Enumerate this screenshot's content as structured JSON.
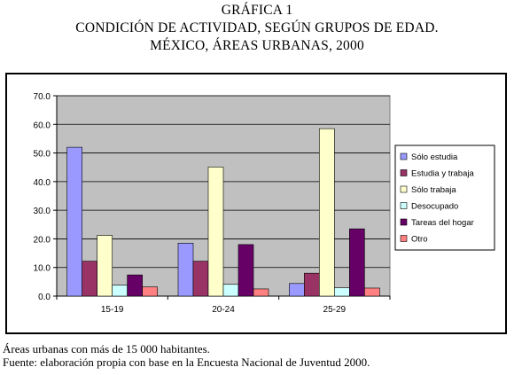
{
  "title": {
    "line1": "GRÁFICA 1",
    "line2": "CONDICIÓN DE ACTIVIDAD, SEGÚN GRUPOS DE EDAD.",
    "line3": "MÉXICO, ÁREAS URBANAS, 2000"
  },
  "footnotes": {
    "note": "Áreas urbanas con más de 15 000 habitantes.",
    "source": "Fuente: elaboración propia con base en la Encuesta Nacional de Juventud 2000."
  },
  "chart_data": {
    "type": "bar",
    "categories": [
      "15-19",
      "20-24",
      "25-29"
    ],
    "series": [
      {
        "name": "Sólo estudia",
        "color": "#9999ff",
        "values": [
          52.0,
          18.5,
          4.4
        ]
      },
      {
        "name": "Estudia y trabaja",
        "color": "#993366",
        "values": [
          12.2,
          12.2,
          8.0
        ]
      },
      {
        "name": "Sólo trabaja",
        "color": "#ffffcc",
        "values": [
          21.2,
          45.1,
          58.5
        ]
      },
      {
        "name": "Desocupado",
        "color": "#ccffff",
        "values": [
          3.8,
          4.1,
          2.9
        ]
      },
      {
        "name": "Tareas del hogar",
        "color": "#660066",
        "values": [
          7.4,
          18.0,
          23.5
        ]
      },
      {
        "name": "Otro",
        "color": "#ff8080",
        "values": [
          3.2,
          2.5,
          2.8
        ]
      }
    ],
    "y_ticks": [
      "70.0",
      "60.0",
      "50.0",
      "40.0",
      "30.0",
      "20.0",
      "10.0",
      "0.0"
    ],
    "ylim": [
      0,
      70
    ],
    "grid": true,
    "legend": "right",
    "plot_background": "#c0c0c0"
  }
}
